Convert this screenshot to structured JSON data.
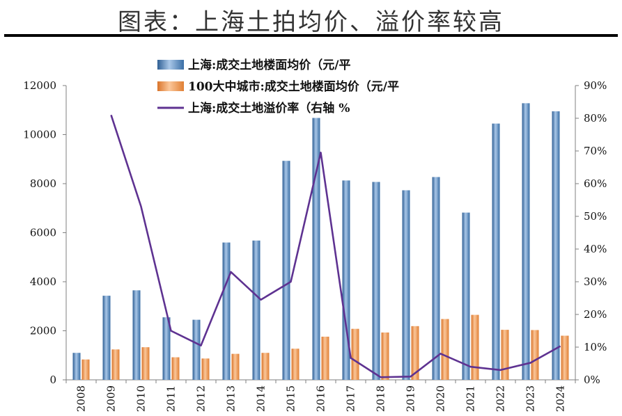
{
  "chart_data": {
    "type": "bar",
    "title": "图表：上海土拍均价、溢价率较高",
    "categories": [
      "2008",
      "2009",
      "2010",
      "2011",
      "2012",
      "2013",
      "2014",
      "2015",
      "2016",
      "2017",
      "2018",
      "2019",
      "2020",
      "2021",
      "2022",
      "2023",
      "2024"
    ],
    "series": [
      {
        "name": "上海:成交土地楼面均价（元/平",
        "axis": "left",
        "kind": "bar",
        "color": "#4f81bd",
        "values": [
          1100,
          3430,
          3650,
          2550,
          2450,
          5600,
          5680,
          8930,
          10680,
          8130,
          8070,
          7730,
          8270,
          6820,
          10450,
          11280,
          10950
        ]
      },
      {
        "name": "100大中城市:成交土地楼面均价（元/平",
        "axis": "left",
        "kind": "bar",
        "color": "#f79646",
        "values": [
          830,
          1240,
          1330,
          920,
          870,
          1060,
          1100,
          1270,
          1760,
          2080,
          1930,
          2190,
          2480,
          2650,
          2040,
          2030,
          1800
        ]
      },
      {
        "name": "上海:成交土地溢价率（右轴 %",
        "axis": "right",
        "kind": "line",
        "color": "#5e3291",
        "values": [
          null,
          81,
          53,
          15,
          10.5,
          33,
          24.5,
          30,
          69.5,
          6.7,
          0.8,
          1,
          8,
          4,
          3,
          5.2,
          10.3
        ]
      }
    ],
    "y_left": {
      "min": 0,
      "max": 12000,
      "ticks": [
        0,
        2000,
        4000,
        6000,
        8000,
        10000,
        12000
      ],
      "tick_labels": [
        "0",
        "2000",
        "4000",
        "6000",
        "8000",
        "10000",
        "12000"
      ]
    },
    "y_right": {
      "min": 0,
      "max": 90,
      "ticks": [
        0,
        10,
        20,
        30,
        40,
        50,
        60,
        70,
        80,
        90
      ],
      "tick_labels": [
        "0%",
        "10%",
        "20%",
        "30%",
        "40%",
        "50%",
        "60%",
        "70%",
        "80%",
        "90%"
      ]
    },
    "legend_position": "top-left",
    "grid": false
  }
}
